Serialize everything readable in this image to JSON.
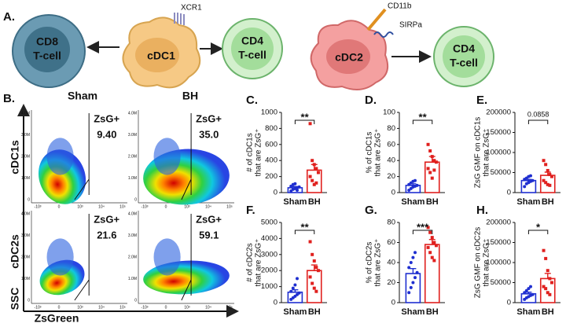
{
  "diagram": {
    "panel": "A.",
    "nodes": [
      {
        "label": [
          "CD8",
          "T-cell"
        ]
      },
      {
        "label": [
          "cDC1"
        ]
      },
      {
        "label": [
          "CD4",
          "T-cell"
        ]
      },
      {
        "label": [
          "cDC2"
        ]
      },
      {
        "label": [
          "CD4",
          "T-cell"
        ]
      }
    ],
    "markers": [
      "XCR1",
      "CD11b",
      "SIRPa"
    ]
  },
  "flow": {
    "panel": "B.",
    "columns": [
      "Sham",
      "BH"
    ],
    "rows": [
      "cDC1s",
      "cDC2s"
    ],
    "gate_label": "ZsG+",
    "percentages": [
      [
        "9.40",
        "35.0"
      ],
      [
        "21.6",
        "59.1"
      ]
    ],
    "y_axis_label": "SSC",
    "x_axis_label": "ZsGreen",
    "yticks": [
      "4.0M",
      "3.0M",
      "2.0M",
      "1.0M",
      "0"
    ],
    "xticks": [
      "-10³",
      "0",
      "10³",
      "10⁴",
      "10⁵"
    ]
  },
  "chart_data": [
    {
      "type": "bar",
      "panel": "C.",
      "ylabel": [
        "# of cDC1s",
        "that are ZsG⁺"
      ],
      "categories": [
        "Sham",
        "BH"
      ],
      "colors": [
        "#1f2fd0",
        "#e0201e"
      ],
      "values": [
        60,
        280
      ],
      "errors": [
        15,
        70
      ],
      "points": [
        [
          20,
          40,
          50,
          60,
          70,
          80,
          100,
          110,
          30
        ],
        [
          860,
          400,
          350,
          300,
          250,
          200,
          150,
          100,
          120
        ]
      ],
      "ylim": [
        0,
        1000
      ],
      "yticks": [
        0,
        200,
        400,
        600,
        800,
        1000
      ],
      "significance": "**"
    },
    {
      "type": "bar",
      "panel": "D.",
      "ylabel": [
        "% of cDC1s",
        "that are ZsG⁺"
      ],
      "categories": [
        "Sham",
        "BH"
      ],
      "colors": [
        "#1f2fd0",
        "#e0201e"
      ],
      "values": [
        9,
        38
      ],
      "errors": [
        2,
        7
      ],
      "points": [
        [
          3,
          5,
          7,
          8,
          9,
          10,
          12,
          14,
          15
        ],
        [
          60,
          52,
          45,
          40,
          38,
          30,
          25,
          18,
          28
        ]
      ],
      "ylim": [
        0,
        100
      ],
      "yticks": [
        0,
        20,
        40,
        60,
        80,
        100
      ],
      "significance": "**"
    },
    {
      "type": "bar",
      "panel": "E.",
      "ylabel": [
        "ZsG GMF on cDC1s",
        "that are ZsG⁺"
      ],
      "categories": [
        "Sham",
        "BH"
      ],
      "colors": [
        "#1f2fd0",
        "#e0201e"
      ],
      "values": [
        30000,
        43000
      ],
      "errors": [
        3000,
        8000
      ],
      "points": [
        [
          15000,
          22000,
          25000,
          28000,
          30000,
          33000,
          36000,
          40000,
          42000
        ],
        [
          80000,
          70000,
          55000,
          45000,
          40000,
          30000,
          25000,
          20000,
          18000
        ]
      ],
      "ylim": [
        0,
        200000
      ],
      "yticks": [
        0,
        50000,
        100000,
        150000,
        200000
      ],
      "significance": "0.0858"
    },
    {
      "type": "bar",
      "panel": "F.",
      "ylabel": [
        "# of cDC2s",
        "that are ZsG⁺"
      ],
      "categories": [
        "Sham",
        "BH"
      ],
      "colors": [
        "#1f2fd0",
        "#e0201e"
      ],
      "values": [
        650,
        2000
      ],
      "errors": [
        150,
        350
      ],
      "points": [
        [
          200,
          300,
          400,
          500,
          600,
          700,
          900,
          1100,
          1500
        ],
        [
          3800,
          3000,
          2600,
          2200,
          2000,
          1600,
          1200,
          900,
          700
        ]
      ],
      "ylim": [
        0,
        5000
      ],
      "yticks": [
        0,
        1000,
        2000,
        3000,
        4000,
        5000
      ],
      "significance": "**"
    },
    {
      "type": "bar",
      "panel": "G.",
      "ylabel": [
        "% of cDC2s",
        "that are ZsG⁺"
      ],
      "categories": [
        "Sham",
        "BH"
      ],
      "colors": [
        "#1f2fd0",
        "#e0201e"
      ],
      "values": [
        29,
        58
      ],
      "errors": [
        5,
        5
      ],
      "points": [
        [
          10,
          15,
          20,
          25,
          30,
          35,
          40,
          45,
          50
        ],
        [
          75,
          70,
          65,
          60,
          57,
          55,
          50,
          45,
          42
        ]
      ],
      "ylim": [
        0,
        80
      ],
      "yticks": [
        0,
        20,
        40,
        60,
        80
      ],
      "significance": "***"
    },
    {
      "type": "bar",
      "panel": "H.",
      "ylabel": [
        "ZsG GMF on cDC2s",
        "that are ZsG⁺"
      ],
      "categories": [
        "Sham",
        "BH"
      ],
      "colors": [
        "#1f2fd0",
        "#e0201e"
      ],
      "values": [
        22000,
        60000
      ],
      "errors": [
        4000,
        13000
      ],
      "points": [
        [
          8000,
          12000,
          15000,
          18000,
          20000,
          25000,
          30000,
          35000,
          40000
        ],
        [
          130000,
          110000,
          80000,
          60000,
          50000,
          40000,
          35000,
          25000,
          20000
        ]
      ],
      "ylim": [
        0,
        200000
      ],
      "yticks": [
        0,
        50000,
        100000,
        150000,
        200000
      ],
      "significance": "*"
    }
  ]
}
